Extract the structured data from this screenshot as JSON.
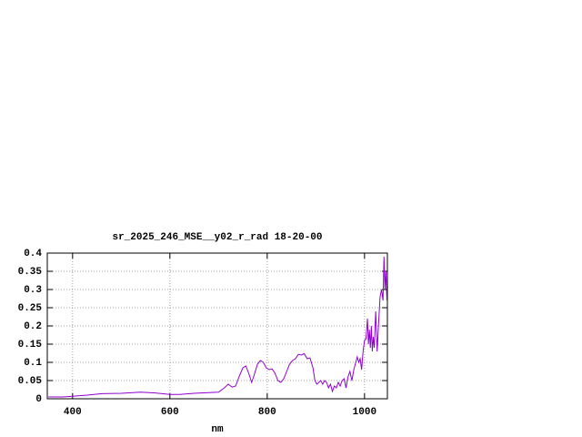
{
  "chart_data": {
    "type": "line",
    "title": "sr_2025_246_MSE__y02_r_rad 18-20-00",
    "x_label": "nm",
    "x": [
      350,
      380,
      400,
      430,
      460,
      500,
      540,
      570,
      600,
      620,
      650,
      680,
      700,
      712,
      720,
      728,
      735,
      742,
      750,
      756,
      762,
      768,
      772,
      780,
      786,
      792,
      798,
      804,
      810,
      816,
      822,
      828,
      834,
      840,
      846,
      852,
      858,
      864,
      870,
      876,
      882,
      888,
      894,
      898,
      902,
      906,
      910,
      914,
      918,
      922,
      926,
      930,
      934,
      938,
      942,
      946,
      950,
      954,
      958,
      962,
      966,
      970,
      974,
      978,
      982,
      985,
      988,
      991,
      994,
      997,
      1000,
      1003,
      1006,
      1008,
      1010,
      1012,
      1014,
      1016,
      1018,
      1020,
      1023,
      1026,
      1029,
      1032,
      1035,
      1038,
      1040,
      1042,
      1044,
      1046
    ],
    "series": [
      {
        "color": "#9400d3",
        "values": [
          0.005,
          0.005,
          0.007,
          0.01,
          0.014,
          0.015,
          0.018,
          0.016,
          0.012,
          0.012,
          0.015,
          0.017,
          0.018,
          0.03,
          0.04,
          0.032,
          0.035,
          0.06,
          0.085,
          0.09,
          0.07,
          0.045,
          0.06,
          0.095,
          0.105,
          0.1,
          0.085,
          0.08,
          0.082,
          0.07,
          0.05,
          0.045,
          0.055,
          0.075,
          0.095,
          0.105,
          0.11,
          0.122,
          0.12,
          0.124,
          0.11,
          0.112,
          0.085,
          0.05,
          0.04,
          0.045,
          0.05,
          0.04,
          0.05,
          0.045,
          0.03,
          0.04,
          0.02,
          0.035,
          0.03,
          0.045,
          0.035,
          0.05,
          0.055,
          0.03,
          0.06,
          0.075,
          0.05,
          0.08,
          0.1,
          0.115,
          0.1,
          0.11,
          0.08,
          0.13,
          0.16,
          0.165,
          0.22,
          0.15,
          0.19,
          0.14,
          0.2,
          0.13,
          0.17,
          0.14,
          0.24,
          0.13,
          0.21,
          0.28,
          0.3,
          0.27,
          0.39,
          0.3,
          0.35,
          0.27
        ]
      }
    ],
    "xlim": [
      348,
      1047
    ],
    "ylim": [
      0,
      0.4
    ],
    "xticks": [
      400,
      600,
      800,
      1000
    ],
    "yticks": [
      0,
      0.05,
      0.1,
      0.15,
      0.2,
      0.25,
      0.3,
      0.35,
      0.4
    ],
    "grid": true
  }
}
